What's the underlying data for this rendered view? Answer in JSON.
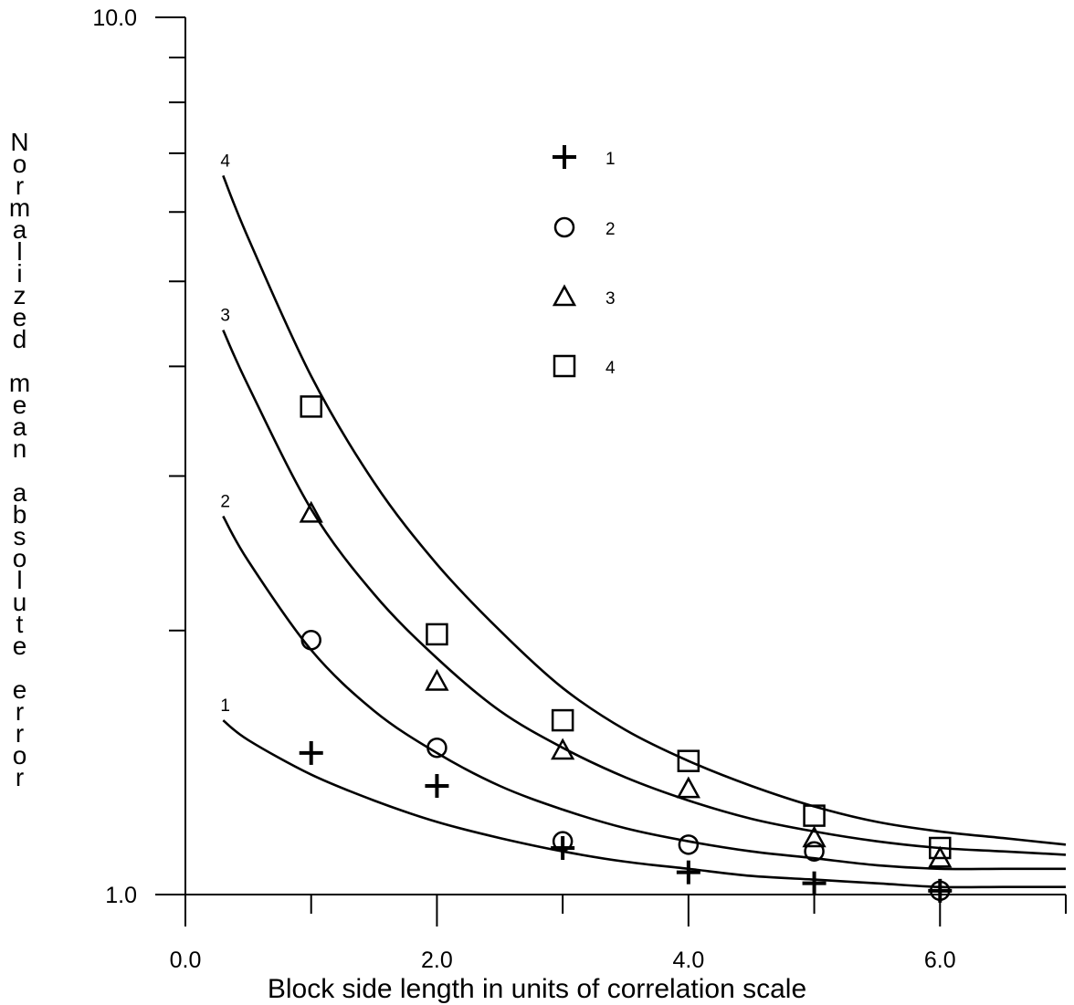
{
  "chart_data": {
    "type": "line",
    "xlabel": "Block side length in units of correlation scale",
    "ylabel": "Normalized mean absolute error",
    "xlim": [
      0,
      7
    ],
    "ylim": [
      1.0,
      10.0
    ],
    "yscale": "log",
    "x_ticks": [
      "0.0",
      "2.0",
      "4.0",
      "6.0"
    ],
    "y_ticks": [
      "1.0",
      "10.0"
    ],
    "legend_position": "top-center",
    "series": [
      {
        "name": "1",
        "marker": "plus",
        "curve_x": [
          0.3,
          0.5,
          1.0,
          1.5,
          2.0,
          2.5,
          3.0,
          3.5,
          4.0,
          4.5,
          5.0,
          5.5,
          6.0,
          6.5,
          7.0
        ],
        "curve_y": [
          1.58,
          1.5,
          1.37,
          1.28,
          1.21,
          1.16,
          1.12,
          1.09,
          1.07,
          1.05,
          1.04,
          1.03,
          1.02,
          1.02,
          1.02
        ],
        "points_x": [
          1,
          2,
          3,
          4,
          5,
          6
        ],
        "points_y": [
          1.45,
          1.33,
          1.13,
          1.06,
          1.03,
          1.01
        ]
      },
      {
        "name": "2",
        "marker": "circle",
        "curve_x": [
          0.3,
          0.5,
          1.0,
          1.5,
          2.0,
          2.5,
          3.0,
          3.5,
          4.0,
          4.5,
          5.0,
          5.5,
          6.0,
          6.5,
          7.0
        ],
        "curve_y": [
          2.7,
          2.4,
          1.9,
          1.62,
          1.45,
          1.33,
          1.25,
          1.19,
          1.15,
          1.12,
          1.1,
          1.08,
          1.07,
          1.07,
          1.07
        ],
        "points_x": [
          1,
          2,
          3,
          4,
          5,
          6
        ],
        "points_y": [
          1.95,
          1.47,
          1.15,
          1.14,
          1.12,
          1.01
        ]
      },
      {
        "name": "3",
        "marker": "triangle",
        "curve_x": [
          0.3,
          0.5,
          1.0,
          1.5,
          2.0,
          2.5,
          3.0,
          3.5,
          4.0,
          4.5,
          5.0,
          5.5,
          6.0,
          6.5,
          7.0
        ],
        "curve_y": [
          4.4,
          3.8,
          2.75,
          2.2,
          1.86,
          1.62,
          1.47,
          1.36,
          1.28,
          1.22,
          1.18,
          1.15,
          1.13,
          1.12,
          1.11
        ],
        "points_x": [
          1,
          2,
          3,
          4,
          5,
          6
        ],
        "points_y": [
          2.72,
          1.75,
          1.46,
          1.32,
          1.16,
          1.1
        ]
      },
      {
        "name": "4",
        "marker": "square",
        "curve_x": [
          0.3,
          0.5,
          1.0,
          1.5,
          2.0,
          2.5,
          3.0,
          3.5,
          4.0,
          4.5,
          5.0,
          5.5,
          6.0,
          6.5,
          7.0
        ],
        "curve_y": [
          6.6,
          5.6,
          3.9,
          2.95,
          2.38,
          2.0,
          1.72,
          1.54,
          1.42,
          1.33,
          1.26,
          1.21,
          1.18,
          1.16,
          1.14
        ]
      }
    ]
  }
}
